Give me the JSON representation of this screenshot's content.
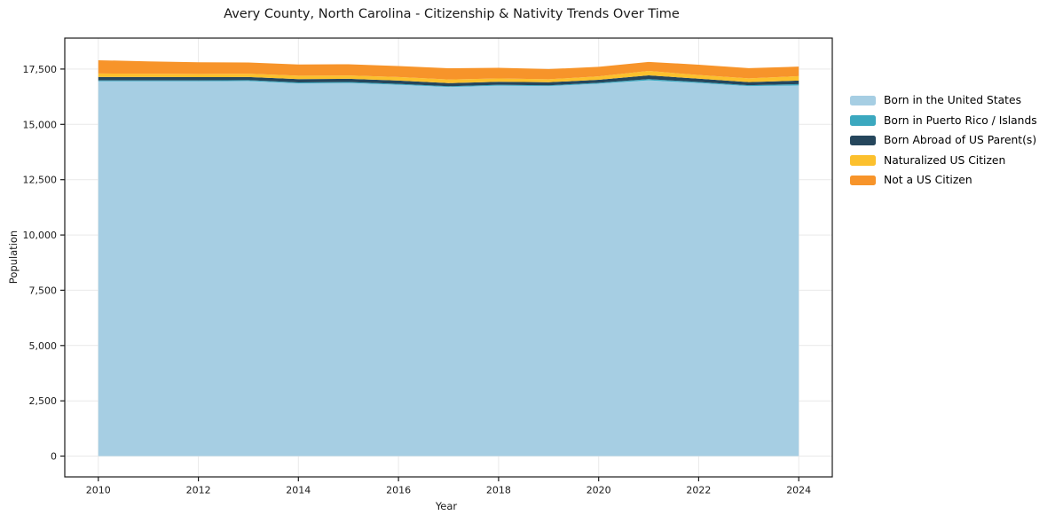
{
  "title": "Avery County, North Carolina - Citizenship & Nativity Trends Over Time",
  "chart_data": {
    "type": "area",
    "stacked": true,
    "title": "Avery County, North Carolina - Citizenship & Nativity Trends Over Time",
    "xlabel": "Year",
    "ylabel": "Population",
    "x": [
      2010,
      2011,
      2012,
      2013,
      2014,
      2015,
      2016,
      2017,
      2018,
      2019,
      2020,
      2021,
      2022,
      2023,
      2024
    ],
    "series": [
      {
        "name": "Born in the United States",
        "color": "#a6cee3",
        "values": [
          16950,
          16950,
          16950,
          16960,
          16850,
          16870,
          16790,
          16690,
          16750,
          16730,
          16840,
          16990,
          16870,
          16730,
          16760
        ]
      },
      {
        "name": "Born in Puerto Rico / Islands",
        "color": "#3ba8bf",
        "values": [
          40,
          40,
          40,
          40,
          45,
          45,
          40,
          35,
          40,
          35,
          40,
          55,
          45,
          40,
          60
        ]
      },
      {
        "name": "Born Abroad of US Parent(s)",
        "color": "#25465c",
        "values": [
          150,
          150,
          145,
          140,
          150,
          145,
          150,
          140,
          135,
          140,
          135,
          170,
          150,
          140,
          160
        ]
      },
      {
        "name": "Naturalized US Citizen",
        "color": "#fcc02d",
        "values": [
          160,
          150,
          145,
          150,
          155,
          150,
          160,
          165,
          150,
          135,
          155,
          200,
          165,
          170,
          200
        ]
      },
      {
        "name": "Not a US Citizen",
        "color": "#f7942a",
        "values": [
          600,
          560,
          530,
          510,
          505,
          510,
          495,
          505,
          480,
          460,
          430,
          410,
          470,
          460,
          430
        ]
      }
    ],
    "x_ticks": [
      2010,
      2012,
      2014,
      2016,
      2018,
      2020,
      2022,
      2024
    ],
    "y_ticks": [
      0,
      2500,
      5000,
      7500,
      10000,
      12500,
      15000,
      17500
    ],
    "xlim": [
      2009.33,
      2024.67
    ],
    "ylim": [
      -940,
      18900
    ],
    "grid": true,
    "grid_color": "#e9e9e9",
    "axis_color": "#1a1a1a",
    "background_color": "#ffffff",
    "legend_position": "right"
  }
}
